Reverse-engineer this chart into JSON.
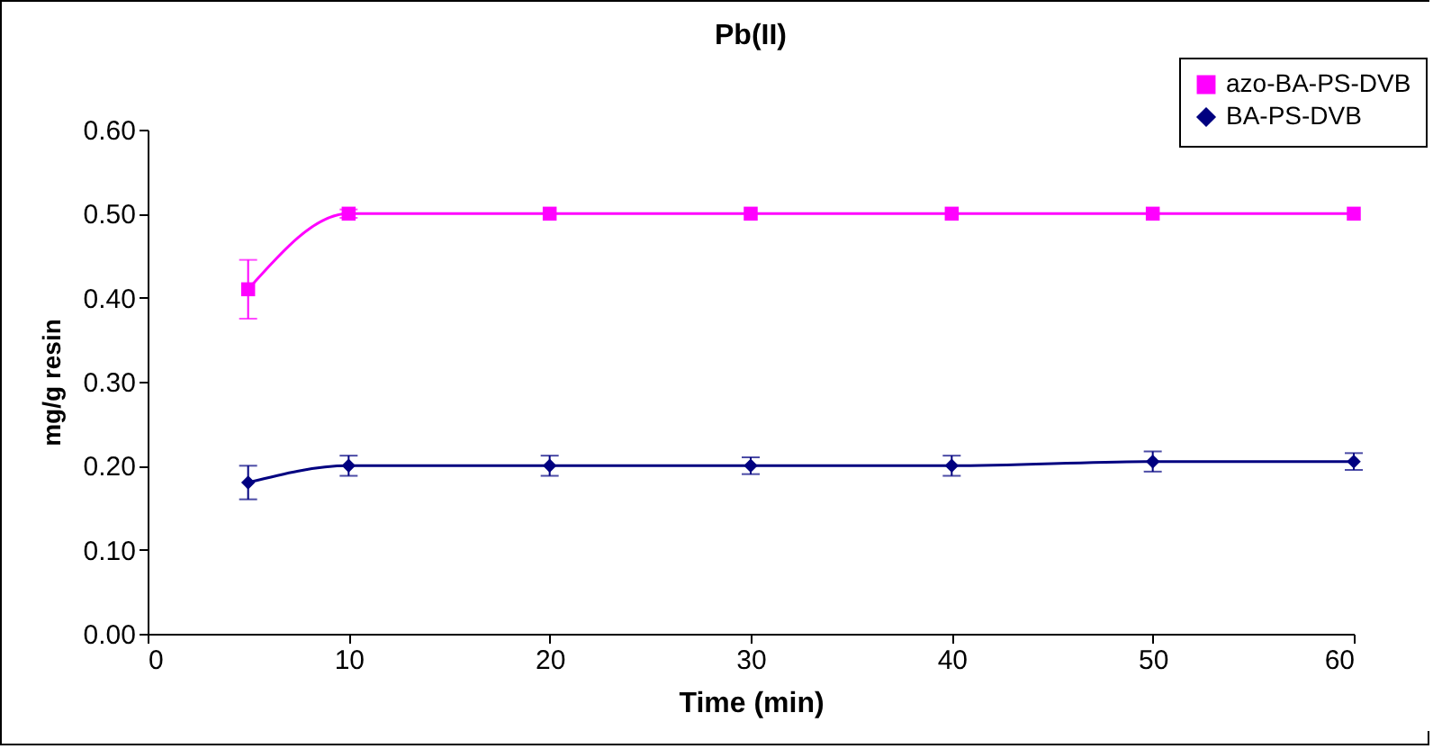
{
  "chart_data": {
    "type": "line",
    "title": "Pb(II)",
    "xlabel": "Time (min)",
    "ylabel": "mg/g resin",
    "x": [
      5,
      10,
      20,
      30,
      40,
      50,
      60
    ],
    "series": [
      {
        "name": "azo-BA-PS-DVB",
        "color": "#ff00ff",
        "marker": "square",
        "values": [
          0.41,
          0.5,
          0.5,
          0.5,
          0.5,
          0.5,
          0.5
        ],
        "errors": [
          0.035,
          0.005,
          null,
          null,
          null,
          null,
          null
        ]
      },
      {
        "name": "BA-PS-DVB",
        "color": "#000080",
        "marker": "diamond",
        "values": [
          0.18,
          0.2,
          0.2,
          0.2,
          0.2,
          0.205,
          0.205
        ],
        "errors": [
          0.02,
          0.012,
          0.012,
          0.01,
          0.012,
          0.012,
          0.01
        ]
      }
    ],
    "xlim": [
      0,
      60
    ],
    "xticks": [
      0,
      10,
      20,
      30,
      40,
      50,
      60
    ],
    "ylim": [
      0,
      0.6
    ],
    "yticks": [
      {
        "value": 0,
        "label": "0.00"
      },
      {
        "value": 0.1,
        "label": "0.10"
      },
      {
        "value": 0.2,
        "label": "0.20"
      },
      {
        "value": 0.3,
        "label": "0.30"
      },
      {
        "value": 0.4,
        "label": "0.40"
      },
      {
        "value": 0.5,
        "label": "0.50"
      },
      {
        "value": 0.6,
        "label": "0.60"
      }
    ],
    "grid": false,
    "legend": "top right"
  }
}
